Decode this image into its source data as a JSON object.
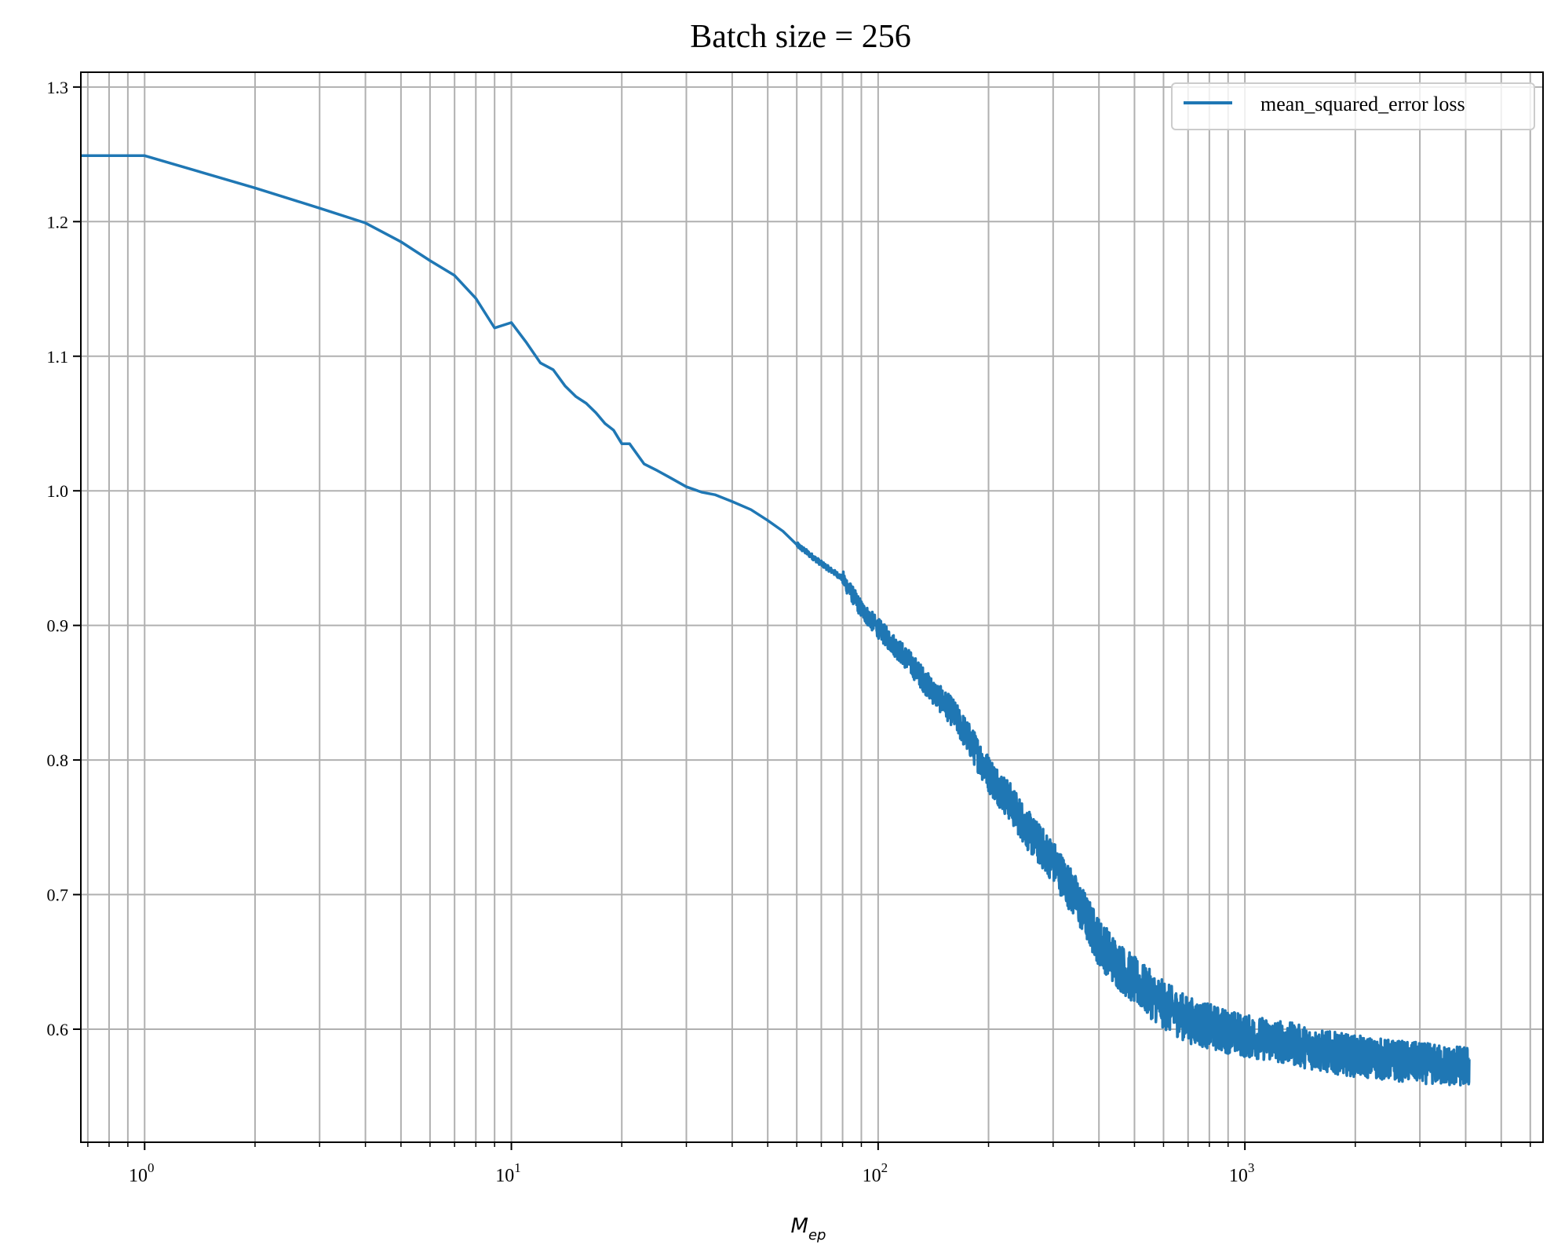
{
  "chart_data": {
    "type": "line",
    "title": "Batch size = 256",
    "xlabel_main": "M",
    "xlabel_sub": "ep",
    "ylabel": "",
    "xscale": "log",
    "xlim": [
      0.67,
      6500
    ],
    "ylim": [
      0.516,
      1.311
    ],
    "grid": true,
    "legend_position": "top-right",
    "xticks": [
      {
        "value": 1,
        "base": "10",
        "exp": "0"
      },
      {
        "value": 10,
        "base": "10",
        "exp": "1"
      },
      {
        "value": 100,
        "base": "10",
        "exp": "2"
      },
      {
        "value": 1000,
        "base": "10",
        "exp": "3"
      }
    ],
    "yticks": [
      "0.6",
      "0.7",
      "0.8",
      "0.9",
      "1.0",
      "1.1",
      "1.2",
      "1.3"
    ],
    "series": [
      {
        "name": "mean_squared_error loss",
        "color": "#1f77b4",
        "x_range": [
          0.67,
          4096
        ],
        "points": [
          [
            0.67,
            1.249
          ],
          [
            1,
            1.249
          ],
          [
            2,
            1.225
          ],
          [
            3,
            1.21
          ],
          [
            4,
            1.199
          ],
          [
            5,
            1.185
          ],
          [
            6,
            1.171
          ],
          [
            7,
            1.16
          ],
          [
            8,
            1.143
          ],
          [
            9,
            1.121
          ],
          [
            10,
            1.125
          ],
          [
            11,
            1.11
          ],
          [
            12,
            1.095
          ],
          [
            13,
            1.09
          ],
          [
            14,
            1.078
          ],
          [
            15,
            1.07
          ],
          [
            16,
            1.065
          ],
          [
            17,
            1.058
          ],
          [
            18,
            1.05
          ],
          [
            19,
            1.045
          ],
          [
            20,
            1.035
          ],
          [
            21,
            1.035
          ],
          [
            23,
            1.02
          ],
          [
            25,
            1.015
          ],
          [
            27,
            1.01
          ],
          [
            30,
            1.003
          ],
          [
            33,
            0.999
          ],
          [
            36,
            0.997
          ],
          [
            40,
            0.992
          ],
          [
            45,
            0.986
          ],
          [
            50,
            0.978
          ],
          [
            55,
            0.97
          ],
          [
            60,
            0.96
          ],
          [
            70,
            0.946
          ],
          [
            80,
            0.935
          ],
          [
            90,
            0.912
          ],
          [
            100,
            0.898
          ],
          [
            120,
            0.875
          ],
          [
            140,
            0.852
          ],
          [
            160,
            0.835
          ],
          [
            180,
            0.812
          ],
          [
            200,
            0.79
          ],
          [
            230,
            0.768
          ],
          [
            260,
            0.745
          ],
          [
            300,
            0.725
          ],
          [
            350,
            0.695
          ],
          [
            400,
            0.665
          ],
          [
            450,
            0.648
          ],
          [
            500,
            0.636
          ],
          [
            600,
            0.618
          ],
          [
            700,
            0.607
          ],
          [
            800,
            0.602
          ],
          [
            1000,
            0.595
          ],
          [
            1300,
            0.59
          ],
          [
            1600,
            0.584
          ],
          [
            2000,
            0.58
          ],
          [
            2500,
            0.577
          ],
          [
            3000,
            0.575
          ],
          [
            3500,
            0.573
          ],
          [
            4096,
            0.572
          ]
        ],
        "noise_band": [
          [
            80,
            0.004
          ],
          [
            150,
            0.008
          ],
          [
            200,
            0.012
          ],
          [
            300,
            0.014
          ],
          [
            400,
            0.016
          ],
          [
            600,
            0.016
          ],
          [
            1000,
            0.014
          ],
          [
            4096,
            0.013
          ]
        ]
      }
    ]
  }
}
